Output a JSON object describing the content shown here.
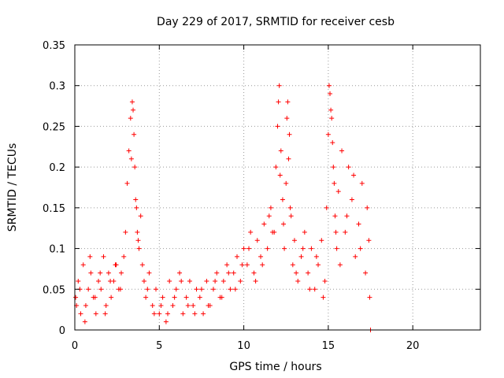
{
  "chart_data": {
    "type": "scatter",
    "title": "Day 229 of 2017, SRMTID for receiver cesb",
    "xlabel": "GPS time / hours",
    "ylabel": "SRMTID / TECUs",
    "xlim": [
      0,
      24
    ],
    "ylim": [
      0,
      0.35
    ],
    "xticks": [
      "0",
      "5",
      "10",
      "15",
      "20"
    ],
    "yticks": [
      "0",
      "0.05",
      "0.1",
      "0.15",
      "0.2",
      "0.25",
      "0.3",
      "0.35"
    ],
    "grid": true,
    "legend": "none",
    "marker": "plus",
    "color": "#ff0000",
    "series": [
      {
        "x": [
          0.05,
          0.2,
          0.35,
          0.5,
          0.65,
          0.8,
          0.95,
          1.1,
          1.25,
          1.4,
          1.55,
          1.7,
          1.85,
          2.0,
          2.15,
          2.3,
          2.45,
          2.6,
          2.75,
          2.9,
          3.0,
          3.1,
          3.2,
          3.3,
          3.4,
          3.5,
          3.55,
          3.6,
          3.7,
          3.8,
          3.9,
          4.0,
          4.1,
          4.2,
          4.4,
          4.6,
          4.8,
          5.0,
          5.2,
          5.4,
          5.6,
          5.8,
          6.0,
          6.2,
          6.4,
          6.6,
          6.8,
          7.0,
          7.2,
          7.4,
          7.6,
          7.8,
          8.0,
          8.2,
          8.4,
          8.6,
          8.8,
          9.0,
          9.2,
          9.4,
          9.6,
          9.8,
          10.0,
          10.2,
          10.4,
          10.6,
          10.8,
          11.0,
          11.2,
          11.4,
          11.6,
          11.8,
          11.9,
          12.0,
          12.1,
          12.2,
          12.3,
          12.4,
          12.5,
          12.6,
          12.7,
          12.8,
          12.9,
          13.0,
          13.2,
          13.4,
          13.6,
          13.8,
          14.0,
          14.2,
          14.4,
          14.6,
          14.8,
          14.9,
          15.0,
          15.1,
          15.2,
          15.3,
          15.4,
          15.5,
          15.6,
          15.8,
          16.0,
          16.2,
          16.4,
          16.6,
          16.8,
          17.0,
          17.2,
          17.4,
          17.5,
          0.1,
          0.3,
          0.6,
          0.9,
          1.2,
          1.5,
          1.8,
          2.1,
          2.4,
          2.7,
          3.35,
          3.45,
          3.65,
          3.75,
          4.3,
          4.7,
          5.1,
          5.5,
          5.9,
          6.3,
          6.7,
          7.1,
          7.5,
          7.9,
          8.3,
          8.7,
          9.1,
          9.5,
          9.9,
          10.3,
          10.7,
          11.1,
          11.5,
          11.7,
          12.05,
          12.15,
          12.35,
          12.55,
          12.65,
          12.75,
          13.1,
          13.5,
          13.9,
          14.3,
          14.7,
          15.05,
          15.15,
          15.25,
          15.35,
          15.45,
          15.7,
          16.1,
          16.5,
          16.9,
          17.3,
          17.45
        ],
        "y": [
          0.04,
          0.06,
          0.02,
          0.08,
          0.03,
          0.05,
          0.07,
          0.04,
          0.02,
          0.06,
          0.05,
          0.09,
          0.03,
          0.07,
          0.04,
          0.06,
          0.08,
          0.05,
          0.07,
          0.09,
          0.12,
          0.18,
          0.22,
          0.26,
          0.28,
          0.24,
          0.2,
          0.16,
          0.12,
          0.1,
          0.14,
          0.08,
          0.06,
          0.04,
          0.07,
          0.03,
          0.05,
          0.02,
          0.04,
          0.01,
          0.06,
          0.03,
          0.05,
          0.07,
          0.02,
          0.04,
          0.06,
          0.03,
          0.05,
          0.04,
          0.02,
          0.06,
          0.03,
          0.05,
          0.07,
          0.04,
          0.06,
          0.08,
          0.05,
          0.07,
          0.09,
          0.06,
          0.1,
          0.08,
          0.12,
          0.07,
          0.11,
          0.09,
          0.13,
          0.1,
          0.15,
          0.12,
          0.2,
          0.25,
          0.3,
          0.22,
          0.16,
          0.1,
          0.18,
          0.28,
          0.24,
          0.14,
          0.08,
          0.11,
          0.06,
          0.09,
          0.12,
          0.07,
          0.1,
          0.05,
          0.08,
          0.11,
          0.06,
          0.15,
          0.24,
          0.29,
          0.26,
          0.2,
          0.14,
          0.1,
          0.17,
          0.22,
          0.12,
          0.2,
          0.16,
          0.09,
          0.13,
          0.18,
          0.07,
          0.11,
          0.0,
          0.03,
          0.05,
          0.01,
          0.09,
          0.04,
          0.07,
          0.02,
          0.06,
          0.08,
          0.05,
          0.21,
          0.27,
          0.15,
          0.11,
          0.05,
          0.02,
          0.03,
          0.02,
          0.04,
          0.06,
          0.03,
          0.02,
          0.05,
          0.03,
          0.06,
          0.04,
          0.07,
          0.05,
          0.08,
          0.1,
          0.06,
          0.08,
          0.14,
          0.12,
          0.28,
          0.19,
          0.13,
          0.26,
          0.21,
          0.15,
          0.07,
          0.1,
          0.05,
          0.09,
          0.04,
          0.3,
          0.27,
          0.23,
          0.18,
          0.12,
          0.08,
          0.14,
          0.19,
          0.1,
          0.15,
          0.04
        ]
      }
    ]
  }
}
